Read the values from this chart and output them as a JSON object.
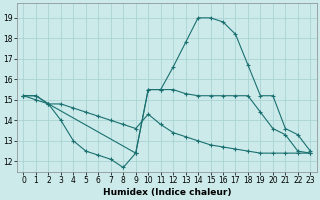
{
  "xlabel": "Humidex (Indice chaleur)",
  "bg_color": "#cceaea",
  "grid_color": "#aad4d4",
  "line_color": "#1a7070",
  "xlim": [
    -0.5,
    23.5
  ],
  "ylim": [
    11.5,
    19.7
  ],
  "yticks": [
    12,
    13,
    14,
    15,
    16,
    17,
    18,
    19
  ],
  "xticks": [
    0,
    1,
    2,
    3,
    4,
    5,
    6,
    7,
    8,
    9,
    10,
    11,
    12,
    13,
    14,
    15,
    16,
    17,
    18,
    19,
    20,
    21,
    22,
    23
  ],
  "line1_x": [
    0,
    1,
    2,
    3,
    4,
    5,
    6,
    7,
    8,
    9,
    10,
    11,
    12,
    13,
    14,
    15,
    16,
    17,
    18,
    19,
    20,
    21,
    22,
    23
  ],
  "line1_y": [
    15.2,
    15.2,
    14.8,
    14.0,
    13.0,
    12.5,
    12.3,
    12.1,
    11.7,
    12.4,
    15.5,
    15.5,
    15.5,
    15.3,
    15.2,
    15.2,
    15.2,
    15.2,
    15.2,
    14.4,
    13.6,
    13.3,
    12.5,
    12.4
  ],
  "line2_x": [
    0,
    1,
    2,
    3,
    4,
    5,
    6,
    7,
    8,
    9,
    10,
    11,
    12,
    13,
    14,
    15,
    16,
    17,
    18,
    19,
    20,
    21,
    22,
    23
  ],
  "line2_y": [
    15.2,
    15.0,
    14.8,
    14.8,
    14.6,
    14.4,
    14.2,
    14.0,
    13.8,
    13.6,
    14.3,
    13.8,
    13.4,
    13.2,
    13.0,
    12.8,
    12.7,
    12.6,
    12.5,
    12.4,
    12.4,
    12.4,
    12.4,
    12.4
  ],
  "line3_x": [
    0,
    1,
    2,
    9,
    10,
    11,
    12,
    13,
    14,
    15,
    16,
    17,
    18,
    19,
    20,
    21,
    22,
    23
  ],
  "line3_y": [
    15.2,
    15.2,
    14.8,
    12.4,
    15.5,
    15.5,
    16.6,
    17.8,
    19.0,
    19.0,
    18.8,
    18.2,
    16.7,
    15.2,
    15.2,
    13.6,
    13.3,
    12.5
  ]
}
